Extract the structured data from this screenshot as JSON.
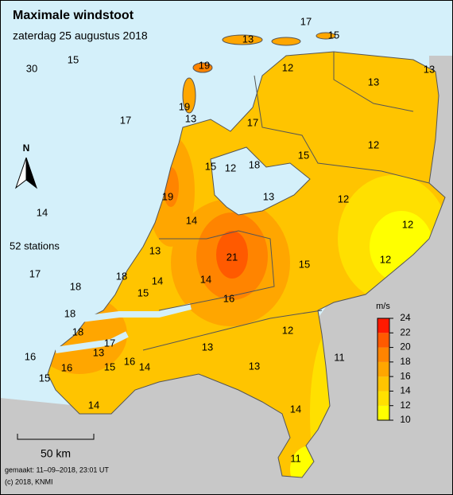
{
  "header": {
    "title": "Maximale windstoot",
    "subtitle": "zaterdag 25 augustus 2018"
  },
  "stations": {
    "count_label": "52 stations",
    "values": [
      17,
      13,
      15,
      30,
      15,
      19,
      12,
      13,
      13,
      19,
      13,
      17,
      17,
      12,
      15,
      15,
      12,
      18,
      13,
      19,
      12,
      14,
      12,
      14,
      13,
      21,
      15,
      12,
      17,
      18,
      14,
      14,
      18,
      15,
      16,
      18,
      18,
      12,
      17,
      13,
      13,
      16,
      11,
      16,
      15,
      16,
      14,
      13,
      15,
      14,
      14,
      11
    ]
  },
  "compass": "N",
  "legend": {
    "unit": "m/s",
    "ticks": [
      10,
      12,
      14,
      16,
      18,
      20,
      22,
      24
    ],
    "colors": [
      "#ffff00",
      "#ffe000",
      "#ffc400",
      "#ffa600",
      "#ff8400",
      "#ff5a00",
      "#ff1a00"
    ]
  },
  "scale_bar": "50 km",
  "footer": {
    "made": "gemaakt: 11–09–2018, 23:01 UT",
    "copyright": "(c) 2018, KNMI"
  }
}
